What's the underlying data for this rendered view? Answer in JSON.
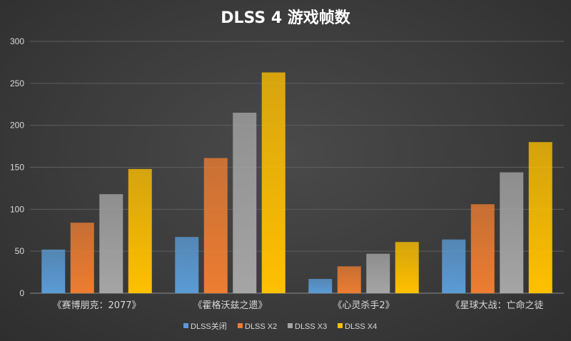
{
  "chart_data": {
    "type": "bar",
    "title": "DLSS 4 游戏帧数",
    "categories": [
      "《赛博朋克：2077》",
      "《霍格沃兹之遗》",
      "《心灵杀手2》",
      "《星球大战：亡命之徒"
    ],
    "series": [
      {
        "name": "DLSS关闭",
        "values": [
          52,
          67,
          17,
          64
        ],
        "color": "#5b9bd5"
      },
      {
        "name": "DLSS X2",
        "values": [
          84,
          161,
          32,
          106
        ],
        "color": "#ed7d31"
      },
      {
        "name": "DLSS X3",
        "values": [
          118,
          215,
          47,
          144
        ],
        "color": "#a5a5a5"
      },
      {
        "name": "DLSS X4",
        "values": [
          148,
          263,
          61,
          180
        ],
        "color": "#ffc000"
      }
    ],
    "ylim": [
      0,
      300
    ],
    "yticks": [
      0,
      50,
      100,
      150,
      200,
      250,
      300
    ],
    "grid": true,
    "legend_position": "bottom"
  }
}
